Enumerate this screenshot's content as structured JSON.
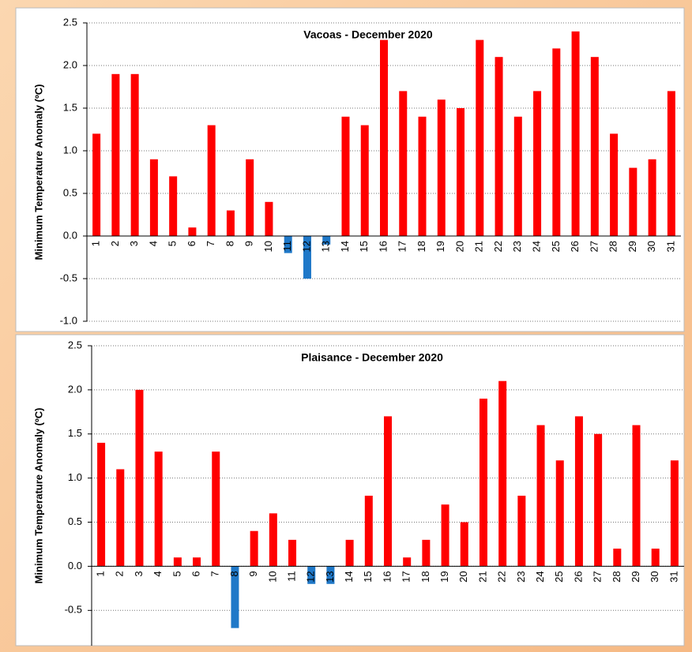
{
  "chart_data": [
    {
      "type": "bar",
      "title": "Vacoas - December 2020",
      "y_label": "Minimum Temperature Anomaly (ºC)",
      "categories": [
        "1",
        "2",
        "3",
        "4",
        "5",
        "6",
        "7",
        "8",
        "9",
        "10",
        "11",
        "12",
        "13",
        "14",
        "15",
        "16",
        "17",
        "18",
        "19",
        "20",
        "21",
        "22",
        "23",
        "24",
        "25",
        "26",
        "27",
        "28",
        "29",
        "30",
        "31"
      ],
      "values": [
        1.2,
        1.9,
        1.9,
        0.9,
        0.7,
        0.1,
        1.3,
        0.3,
        0.9,
        0.4,
        -0.2,
        -0.5,
        -0.1,
        1.4,
        1.3,
        2.3,
        1.7,
        1.4,
        1.6,
        1.5,
        2.3,
        2.1,
        1.4,
        1.7,
        2.2,
        2.4,
        2.1,
        1.2,
        0.8,
        0.9,
        1.7
      ],
      "color": "#ff0000",
      "negative_color": "#1f78c8",
      "ylim": [
        -1,
        2.5
      ],
      "yticks": [
        {
          "value": -1,
          "label": "-1.0"
        },
        -0.5,
        {
          "value": 0,
          "label": "0.0"
        },
        0.5,
        {
          "value": 1,
          "label": "1.0"
        },
        1.5,
        {
          "value": 2,
          "label": "2.0"
        },
        2.5
      ],
      "grid": true
    },
    {
      "type": "bar",
      "title": "Plaisance - December 2020",
      "y_label": "Minimum Temperature Anomaly (ºC)",
      "categories": [
        "1",
        "2",
        "3",
        "4",
        "5",
        "6",
        "7",
        "8",
        "9",
        "10",
        "11",
        "12",
        "13",
        "14",
        "15",
        "16",
        "17",
        "18",
        "19",
        "20",
        "21",
        "22",
        "23",
        "24",
        "25",
        "26",
        "27",
        "28",
        "29",
        "30",
        "31"
      ],
      "values": [
        1.4,
        1.1,
        2.0,
        1.3,
        0.1,
        0.1,
        1.3,
        -0.7,
        0.4,
        0.6,
        0.3,
        -0.2,
        -0.2,
        0.3,
        0.8,
        1.7,
        0.1,
        0.3,
        0.7,
        0.5,
        1.9,
        2.1,
        0.8,
        1.6,
        1.2,
        1.7,
        1.5,
        0.2,
        1.6,
        0.2,
        1.2
      ],
      "color": "#ff0000",
      "negative_color": "#1f78c8",
      "ylim": [
        -0.9,
        2.5
      ],
      "yticks": [
        -0.5,
        {
          "value": 0,
          "label": "0.0"
        },
        0.5,
        {
          "value": 1,
          "label": "1.0"
        },
        1.5,
        {
          "value": 2,
          "label": "2.0"
        },
        2.5
      ],
      "grid": true
    }
  ]
}
